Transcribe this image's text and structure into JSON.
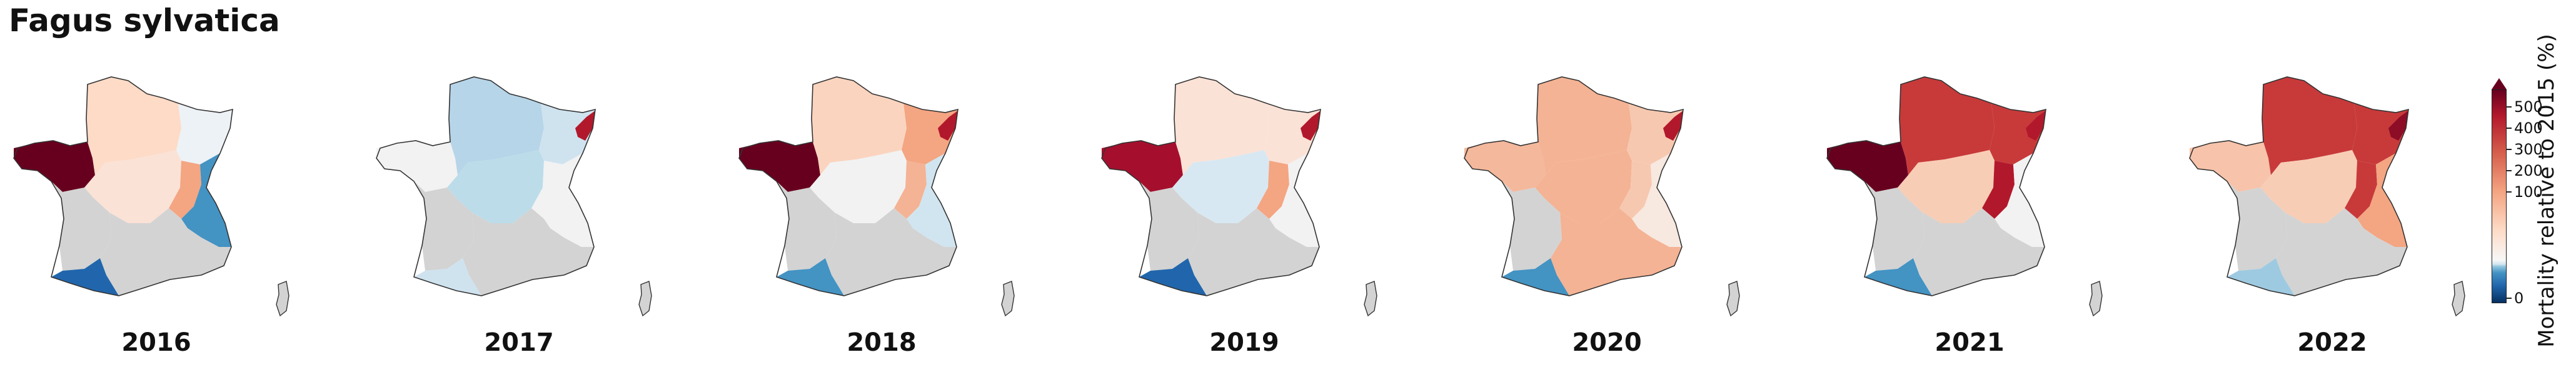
{
  "title": "Fagus sylvatica",
  "colorbar": {
    "label": "Mortality relative to 2015 (%)",
    "ticks": [
      "500",
      "400",
      "300",
      "200",
      "100",
      "0"
    ],
    "colormap": "RdBu_r",
    "extend": "max",
    "colors": {
      "deep_blue": "#2166ac",
      "mid_blue": "#4393c3",
      "light_blue": "#9ecae1",
      "pale_blue": "#d1e5f0",
      "white": "#f7f7f7",
      "pale_red": "#fddbc7",
      "light_red": "#f4a582",
      "mid_red": "#d6604d",
      "dark_red": "#b2182b",
      "darkest_red": "#67001f",
      "no_data": "#d3d3d3"
    }
  },
  "maps": [
    {
      "year": "2016",
      "regions": {
        "nw": "#67001f",
        "n": "#fddbc7",
        "ne": "#edf2f6",
        "c": "#fbe2d6",
        "alps": "#4393c3",
        "sw": "#d3d3d3",
        "s": "#d3d3d3",
        "pyr": "#2166ac",
        "rhone": "#f4a582"
      }
    },
    {
      "year": "2017",
      "regions": {
        "nw": "#f2f2f2",
        "n": "#b7d5e8",
        "ne": "#cfe3ef",
        "c": "#bcdcea",
        "alps": "#f2f2f2",
        "sw": "#d3d3d3",
        "s": "#d3d3d3",
        "pyr": "#cfe3ef",
        "rhone": "#f2f2f2",
        "east": "#b2182b"
      }
    },
    {
      "year": "2018",
      "regions": {
        "nw": "#67001f",
        "n": "#fbd4bf",
        "ne": "#f4a582",
        "c": "#f2f2f2",
        "alps": "#d1e5f0",
        "sw": "#d3d3d3",
        "s": "#d3d3d3",
        "pyr": "#4393c3",
        "rhone": "#f4b394",
        "east": "#b2182b"
      }
    },
    {
      "year": "2019",
      "regions": {
        "nw": "#a50f2d",
        "n": "#fbe2d6",
        "ne": "#fbe2d6",
        "c": "#d8e8f2",
        "alps": "#f2f2f2",
        "sw": "#d3d3d3",
        "s": "#d3d3d3",
        "pyr": "#2166ac",
        "rhone": "#f4a582",
        "east": "#b2182b"
      }
    },
    {
      "year": "2020",
      "regions": {
        "nw": "#f4b89c",
        "n": "#f4b394",
        "ne": "#f7c8b0",
        "c": "#f4b394",
        "alps": "#f7e8e0",
        "sw": "#d3d3d3",
        "s": "#f4b394",
        "pyr": "#4393c3",
        "rhone": "#f7c8b0",
        "east": "#b2182b"
      }
    },
    {
      "year": "2021",
      "regions": {
        "nw": "#67001f",
        "n": "#c83a3a",
        "ne": "#c83a3a",
        "c": "#f8cdb5",
        "alps": "#f2f2f2",
        "sw": "#d3d3d3",
        "s": "#d3d3d3",
        "pyr": "#4393c3",
        "rhone": "#b2182b",
        "east": "#b2182b"
      }
    },
    {
      "year": "2022",
      "regions": {
        "nw": "#f7c3ab",
        "n": "#c83a3a",
        "ne": "#c83a3a",
        "c": "#f8cdb5",
        "alps": "#f4a582",
        "sw": "#d3d3d3",
        "s": "#d3d3d3",
        "pyr": "#9ecae1",
        "rhone": "#c83a3a",
        "east": "#8c0d25"
      }
    }
  ]
}
